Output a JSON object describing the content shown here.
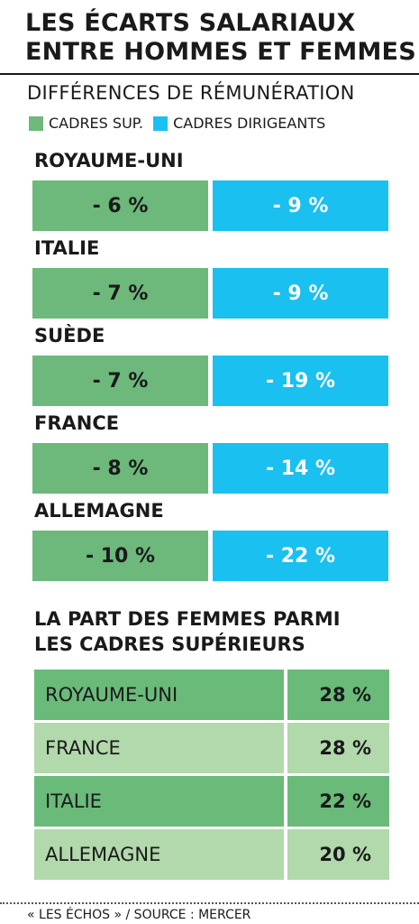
{
  "title_lines": [
    "LES ÉCARTS SALARIAUX",
    "ENTRE HOMMES ET FEMMES"
  ],
  "colors": {
    "green": "#6db87b",
    "blue": "#19c0f0",
    "dark_green": "#6aba7a",
    "light_green": "#b1d9ab"
  },
  "chart_data": [
    {
      "type": "bar",
      "title": "DIFFÉRENCES DE RÉMUNÉRATION",
      "categories": [
        "ROYAUME-UNI",
        "ITALIE",
        "SUÈDE",
        "FRANCE",
        "ALLEMAGNE"
      ],
      "series": [
        {
          "name": "CADRES SUP.",
          "values": [
            -6,
            -7,
            -7,
            -8,
            -10
          ],
          "labels": [
            "- 6 %",
            "- 7 %",
            "- 7 %",
            "- 8 %",
            "- 10 %"
          ]
        },
        {
          "name": "CADRES DIRIGEANTS",
          "values": [
            -9,
            -9,
            -19,
            -14,
            -22
          ],
          "labels": [
            "- 9 %",
            "- 9 %",
            "- 19 %",
            "- 14 %",
            "- 22 %"
          ]
        }
      ],
      "legend": "top"
    },
    {
      "type": "table",
      "title_lines": [
        "LA PART DES FEMMES PARMI",
        "LES CADRES SUPÉRIEURS"
      ],
      "rows": [
        {
          "country": "ROYAUME-UNI",
          "value": 28,
          "label": "28 %"
        },
        {
          "country": "FRANCE",
          "value": 28,
          "label": "28 %"
        },
        {
          "country": "ITALIE",
          "value": 22,
          "label": "22 %"
        },
        {
          "country": "ALLEMAGNE",
          "value": 20,
          "label": "20 %"
        }
      ]
    }
  ],
  "footer": "« LES ÉCHOS » / SOURCE : MERCER"
}
